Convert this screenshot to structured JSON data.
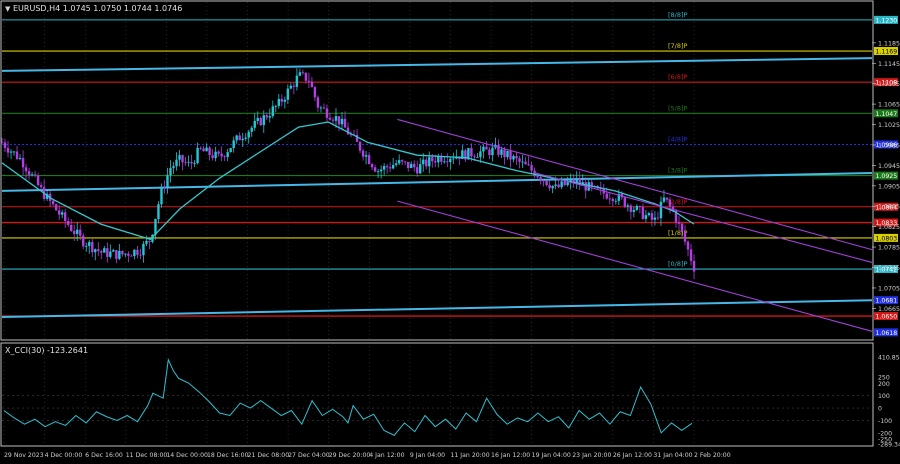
{
  "colors": {
    "background": "#000000",
    "frame": "#c0c0c0",
    "grid": "#404040",
    "candle_up": "#22c7d6",
    "candle_down": "#b040e0",
    "ma": "#35c8d0",
    "trendline": "#45b8e8",
    "channel": "#a040d8",
    "cci": "#30c0d0",
    "murrey_8_8": "#2bb6c8",
    "murrey_7_8": "#d8d000",
    "murrey_6_8": "#d01818",
    "murrey_5_8": "#1a7a1a",
    "murrey_4_8": "#2030e0",
    "murrey_3_8": "#1a7a1a",
    "murrey_2_8": "#d01818",
    "murrey_1_8": "#d8d000",
    "murrey_0_8": "#2bb6c8"
  },
  "header": {
    "main_title": "EURUSD,H4  1.0745 1.0750 1.0744 1.0746",
    "sub_title": "X_CCI(30) -123.2641"
  },
  "chart_data": [
    {
      "type": "candlestick",
      "symbol": "EURUSD",
      "timeframe": "H4",
      "ohlc_last": [
        1.0745,
        1.075,
        1.0744,
        1.0746
      ],
      "ylim": [
        1.0605,
        1.1265
      ],
      "y_ticks": [
        "1.1185",
        "1.1145",
        "1.1105",
        "1.1065",
        "1.1025",
        "1.0985",
        "1.0945",
        "1.0905",
        "1.0865",
        "1.0825",
        "1.0785",
        "1.0745",
        "1.0705",
        "1.0665"
      ],
      "x_labels": [
        "29 Nov 2023",
        "4 Dec 00:00",
        "6 Dec 16:00",
        "11 Dec 08:00",
        "14 Dec 00:00",
        "18 Dec 16:00",
        "21 Dec 08:00",
        "27 Dec 04:00",
        "29 Dec 20:00",
        "4 Jan 12:00",
        "9 Jan 04:00",
        "11 Jan 20:00",
        "16 Jan 12:00",
        "19 Jan 04:00",
        "23 Jan 20:00",
        "26 Jan 12:00",
        "31 Jan 04:00",
        "2 Feb 20:00"
      ],
      "price_path": [
        [
          0,
          1.099
        ],
        [
          2,
          1.0955
        ],
        [
          4,
          1.0895
        ],
        [
          6,
          1.0845
        ],
        [
          8,
          1.08
        ],
        [
          10,
          1.0775
        ],
        [
          12,
          1.077
        ],
        [
          14,
          1.078
        ],
        [
          15,
          1.08
        ],
        [
          16,
          1.0885
        ],
        [
          17,
          1.094
        ],
        [
          18,
          1.0955
        ],
        [
          19,
          1.0945
        ],
        [
          20,
          1.0975
        ],
        [
          22,
          1.096
        ],
        [
          24,
          1.1
        ],
        [
          26,
          1.103
        ],
        [
          28,
          1.1065
        ],
        [
          30,
          1.112
        ],
        [
          31,
          1.1115
        ],
        [
          32,
          1.106
        ],
        [
          34,
          1.1035
        ],
        [
          36,
          1.0985
        ],
        [
          38,
          1.0935
        ],
        [
          40,
          1.095
        ],
        [
          42,
          1.094
        ],
        [
          44,
          1.096
        ],
        [
          46,
          1.0965
        ],
        [
          48,
          1.097
        ],
        [
          50,
          1.0975
        ],
        [
          52,
          1.0955
        ],
        [
          54,
          1.093
        ],
        [
          56,
          1.09
        ],
        [
          58,
          1.0915
        ],
        [
          60,
          1.0895
        ],
        [
          62,
          1.0885
        ],
        [
          64,
          1.086
        ],
        [
          66,
          1.0835
        ],
        [
          67,
          1.088
        ],
        [
          68,
          1.085
        ],
        [
          69,
          1.08
        ],
        [
          70,
          1.0746
        ]
      ],
      "moving_average": [
        [
          0,
          1.095
        ],
        [
          5,
          1.088
        ],
        [
          10,
          1.083
        ],
        [
          15,
          1.08
        ],
        [
          18,
          1.086
        ],
        [
          22,
          1.092
        ],
        [
          26,
          1.097
        ],
        [
          30,
          1.102
        ],
        [
          33,
          1.103
        ],
        [
          37,
          1.099
        ],
        [
          42,
          1.0965
        ],
        [
          47,
          1.096
        ],
        [
          52,
          1.0935
        ],
        [
          57,
          1.0915
        ],
        [
          62,
          1.0895
        ],
        [
          66,
          1.087
        ],
        [
          68,
          1.0855
        ],
        [
          70,
          1.083
        ]
      ],
      "trendlines": [
        {
          "from": [
            0,
            1.113
          ],
          "to": [
            88,
            1.1155
          ]
        },
        {
          "from": [
            0,
            1.0895
          ],
          "to": [
            88,
            1.093
          ]
        },
        {
          "from": [
            0,
            1.0648
          ],
          "to": [
            88,
            1.0681
          ]
        }
      ],
      "channel": [
        {
          "from": [
            40,
            1.1035
          ],
          "to": [
            88,
            1.078
          ]
        },
        {
          "from": [
            40,
            1.0875
          ],
          "to": [
            88,
            1.062
          ]
        },
        {
          "from": [
            54,
            1.093
          ],
          "to": [
            88,
            1.0755
          ]
        }
      ],
      "murrey_levels": [
        {
          "label": "[8/8]P",
          "value": 1.123,
          "price_tag": "1.1230",
          "key": "murrey_8_8"
        },
        {
          "label": "[7/8]P",
          "value": 1.1169,
          "price_tag": "1.1169",
          "key": "murrey_7_8"
        },
        {
          "label": "[6/8]P",
          "value": 1.1108,
          "price_tag": "1.1108",
          "key": "murrey_6_8"
        },
        {
          "label": "[5/8]P",
          "value": 1.1047,
          "price_tag": "1.1047",
          "key": "murrey_5_8"
        },
        {
          "label": "[4/8]P",
          "value": 1.0986,
          "price_tag": "1.0986",
          "key": "murrey_4_8"
        },
        {
          "label": "[3/8]P",
          "value": 1.0925,
          "price_tag": "1.0925",
          "key": "murrey_3_8"
        },
        {
          "label": "[2/8]P",
          "value": 1.0864,
          "price_tag": "1.0864",
          "key": "murrey_2_8"
        },
        {
          "label": "[1/8]P",
          "value": 1.0803,
          "price_tag": "1.0803",
          "key": "murrey_1_8"
        },
        {
          "label": "[0/8]P",
          "value": 1.0742,
          "price_tag": "1.0742",
          "key": "murrey_0_8"
        }
      ],
      "extra_lines": [
        {
          "value": 1.0833,
          "price_tag": "1.0833",
          "key": "murrey_6_8"
        },
        {
          "value": 1.065,
          "price_tag": "1.0650",
          "key": "murrey_6_8"
        }
      ],
      "right_tags": [
        {
          "value": 1.0681,
          "text": "1.0681",
          "color": "#2030e0"
        },
        {
          "value": 1.0618,
          "text": "1.0618",
          "color": "#2030e0"
        }
      ]
    },
    {
      "type": "line",
      "name": "X_CCI(30)",
      "current_value": -123.2641,
      "ylim": [
        -290,
        420
      ],
      "y_ticks": [
        "410.8501",
        "250",
        "200",
        "100",
        "0",
        "-100",
        "-200",
        "-250",
        "-289.3466"
      ],
      "values": [
        [
          0,
          -20
        ],
        [
          2,
          -80
        ],
        [
          4,
          -130
        ],
        [
          6,
          -90
        ],
        [
          8,
          -150
        ],
        [
          10,
          -110
        ],
        [
          12,
          -140
        ],
        [
          14,
          -60
        ],
        [
          16,
          -120
        ],
        [
          18,
          -30
        ],
        [
          20,
          -70
        ],
        [
          22,
          -100
        ],
        [
          24,
          -60
        ],
        [
          26,
          -110
        ],
        [
          28,
          20
        ],
        [
          29,
          120
        ],
        [
          31,
          80
        ],
        [
          32,
          390
        ],
        [
          33,
          300
        ],
        [
          34,
          240
        ],
        [
          36,
          200
        ],
        [
          38,
          130
        ],
        [
          40,
          50
        ],
        [
          42,
          -40
        ],
        [
          44,
          -60
        ],
        [
          46,
          40
        ],
        [
          48,
          0
        ],
        [
          50,
          60
        ],
        [
          52,
          0
        ],
        [
          54,
          -60
        ],
        [
          56,
          -20
        ],
        [
          58,
          -130
        ],
        [
          60,
          60
        ],
        [
          62,
          -60
        ],
        [
          64,
          -10
        ],
        [
          66,
          -70
        ],
        [
          67,
          -120
        ],
        [
          68,
          20
        ],
        [
          70,
          -90
        ],
        [
          72,
          -50
        ],
        [
          74,
          -180
        ],
        [
          76,
          -220
        ],
        [
          78,
          -120
        ],
        [
          80,
          -190
        ],
        [
          82,
          -60
        ],
        [
          84,
          -150
        ],
        [
          86,
          -90
        ],
        [
          88,
          -170
        ],
        [
          90,
          -40
        ],
        [
          92,
          -110
        ],
        [
          94,
          80
        ],
        [
          96,
          -50
        ],
        [
          98,
          -130
        ],
        [
          100,
          -80
        ],
        [
          102,
          -110
        ],
        [
          104,
          -40
        ],
        [
          106,
          -110
        ],
        [
          108,
          -70
        ],
        [
          110,
          -160
        ],
        [
          112,
          -20
        ],
        [
          114,
          -90
        ],
        [
          116,
          -40
        ],
        [
          118,
          -130
        ],
        [
          120,
          -30
        ],
        [
          122,
          -60
        ],
        [
          124,
          170
        ],
        [
          126,
          30
        ],
        [
          128,
          -200
        ],
        [
          130,
          -120
        ],
        [
          132,
          -180
        ],
        [
          134,
          -123
        ]
      ]
    }
  ]
}
